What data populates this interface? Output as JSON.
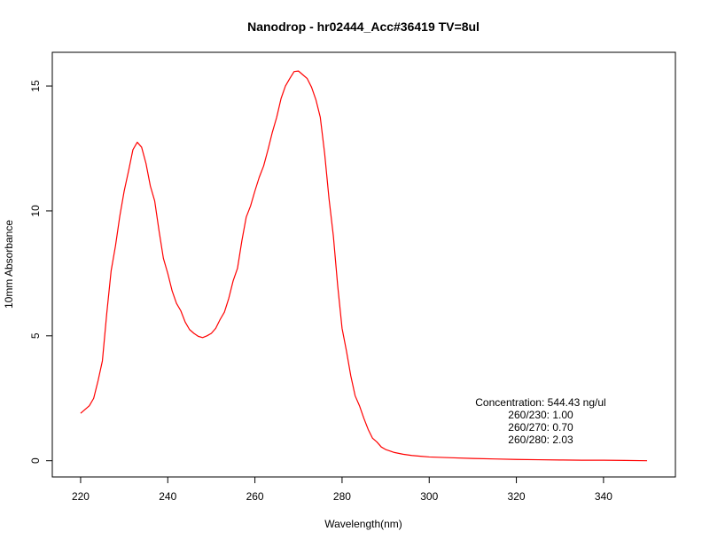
{
  "chart_data": {
    "type": "line",
    "title": "Nanodrop - hr02444_Acc#36419 TV=8ul",
    "xlabel": "Wavelength(nm)",
    "ylabel": "10mm Absorbance",
    "xlim": [
      213.5,
      356.5
    ],
    "ylim": [
      -0.65,
      16.35
    ],
    "x_ticks": [
      220,
      240,
      260,
      280,
      300,
      320,
      340
    ],
    "y_ticks": [
      0,
      5,
      10,
      15
    ],
    "x_tick_labels": [
      "220",
      "240",
      "260",
      "280",
      "300",
      "320",
      "340"
    ],
    "y_tick_labels": [
      "0",
      "5",
      "10",
      "15"
    ],
    "grid": false,
    "series": [
      {
        "color": "#ff0000",
        "x": [
          220,
          221,
          222,
          223,
          224,
          225,
          226,
          227,
          228,
          229,
          230,
          231,
          232,
          233,
          234,
          235,
          236,
          237,
          238,
          239,
          240,
          241,
          242,
          243,
          244,
          245,
          246,
          247,
          248,
          249,
          250,
          251,
          252,
          253,
          254,
          255,
          256,
          257,
          258,
          259,
          260,
          261,
          262,
          263,
          264,
          265,
          266,
          267,
          268,
          269,
          270,
          271,
          272,
          273,
          274,
          275,
          276,
          277,
          278,
          279,
          280,
          281,
          282,
          283,
          284,
          285,
          286,
          287,
          288,
          289,
          290,
          292,
          294,
          296,
          298,
          300,
          305,
          310,
          315,
          320,
          325,
          330,
          335,
          340,
          345,
          350
        ],
        "y": [
          1.9,
          2.05,
          2.2,
          2.5,
          3.2,
          4.0,
          5.9,
          7.6,
          8.6,
          9.8,
          10.8,
          11.6,
          12.45,
          12.75,
          12.55,
          11.9,
          11.0,
          10.4,
          9.2,
          8.1,
          7.5,
          6.8,
          6.3,
          6.0,
          5.55,
          5.25,
          5.1,
          4.98,
          4.93,
          5.0,
          5.1,
          5.3,
          5.65,
          5.95,
          6.5,
          7.2,
          7.7,
          8.8,
          9.75,
          10.2,
          10.8,
          11.35,
          11.8,
          12.45,
          13.15,
          13.75,
          14.5,
          15.0,
          15.3,
          15.58,
          15.6,
          15.45,
          15.3,
          14.95,
          14.45,
          13.75,
          12.3,
          10.5,
          9.0,
          7.0,
          5.3,
          4.4,
          3.4,
          2.6,
          2.2,
          1.7,
          1.25,
          0.9,
          0.75,
          0.55,
          0.45,
          0.33,
          0.26,
          0.21,
          0.18,
          0.15,
          0.12,
          0.09,
          0.07,
          0.05,
          0.04,
          0.03,
          0.02,
          0.02,
          0.01,
          0.0
        ]
      }
    ],
    "annotations": [
      "Concentration: 544.43 ng/ul",
      "260/230: 1.00",
      "260/270: 0.70",
      "260/280: 2.03"
    ]
  }
}
